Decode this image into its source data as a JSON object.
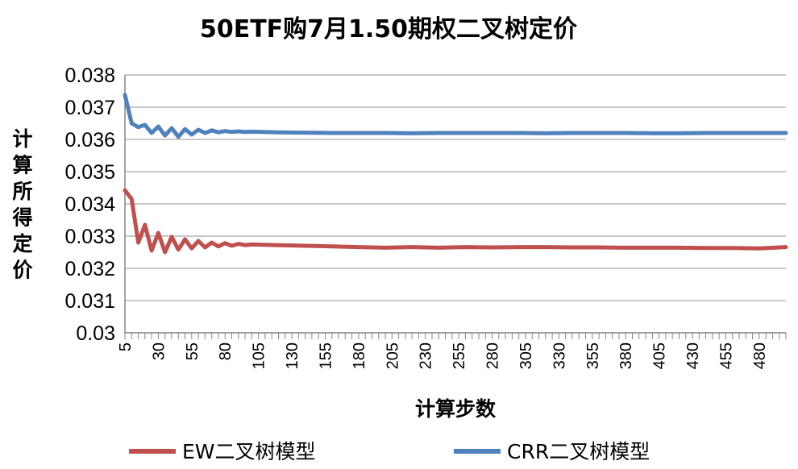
{
  "chart_data": {
    "type": "line",
    "title": "50ETF购7月1.50期权二叉树定价",
    "xlabel": "计算步数",
    "ylabel": "计算所得定价",
    "ylim": [
      0.03,
      0.038
    ],
    "yticks": [
      0.03,
      0.031,
      0.032,
      0.033,
      0.034,
      0.035,
      0.036,
      0.037,
      0.038
    ],
    "ytick_labels": [
      "0.03",
      "0.031",
      "0.032",
      "0.033",
      "0.034",
      "0.035",
      "0.036",
      "0.037",
      "0.038"
    ],
    "x_range": [
      5,
      500
    ],
    "xtick_labels": [
      "5",
      "30",
      "55",
      "80",
      "105",
      "130",
      "155",
      "180",
      "205",
      "230",
      "255",
      "280",
      "305",
      "330",
      "355",
      "380",
      "405",
      "430",
      "455",
      "480"
    ],
    "grid": true,
    "legend_position": "bottom",
    "series": [
      {
        "name": "EW二叉树模型",
        "color": "#c0504d",
        "x": [
          5,
          10,
          15,
          20,
          25,
          30,
          35,
          40,
          45,
          50,
          55,
          60,
          65,
          70,
          75,
          80,
          85,
          90,
          95,
          100,
          120,
          140,
          160,
          180,
          200,
          220,
          240,
          260,
          280,
          300,
          320,
          340,
          360,
          380,
          400,
          420,
          440,
          460,
          480,
          500
        ],
        "values": [
          0.03442,
          0.03415,
          0.0328,
          0.03335,
          0.03255,
          0.0331,
          0.0325,
          0.03298,
          0.03258,
          0.0329,
          0.03262,
          0.03285,
          0.03265,
          0.0328,
          0.03268,
          0.03278,
          0.0327,
          0.03276,
          0.03272,
          0.03274,
          0.03272,
          0.0327,
          0.03268,
          0.03266,
          0.03264,
          0.03266,
          0.03264,
          0.03266,
          0.03265,
          0.03266,
          0.03266,
          0.03265,
          0.03265,
          0.03264,
          0.03264,
          0.03264,
          0.03263,
          0.03263,
          0.03262,
          0.03266
        ]
      },
      {
        "name": "CRR二叉树模型",
        "color": "#4f81bd",
        "x": [
          5,
          10,
          15,
          20,
          25,
          30,
          35,
          40,
          45,
          50,
          55,
          60,
          65,
          70,
          75,
          80,
          85,
          90,
          95,
          100,
          120,
          140,
          160,
          180,
          200,
          220,
          240,
          260,
          280,
          300,
          320,
          340,
          360,
          380,
          400,
          420,
          440,
          460,
          480,
          500
        ],
        "values": [
          0.03738,
          0.0365,
          0.03638,
          0.03645,
          0.0362,
          0.0364,
          0.03612,
          0.03635,
          0.03608,
          0.03632,
          0.03615,
          0.0363,
          0.0362,
          0.03628,
          0.03622,
          0.03626,
          0.03623,
          0.03625,
          0.03623,
          0.03624,
          0.03622,
          0.03621,
          0.0362,
          0.0362,
          0.0362,
          0.03619,
          0.0362,
          0.0362,
          0.0362,
          0.0362,
          0.03619,
          0.0362,
          0.0362,
          0.0362,
          0.03619,
          0.03619,
          0.0362,
          0.0362,
          0.0362,
          0.0362
        ]
      }
    ]
  }
}
